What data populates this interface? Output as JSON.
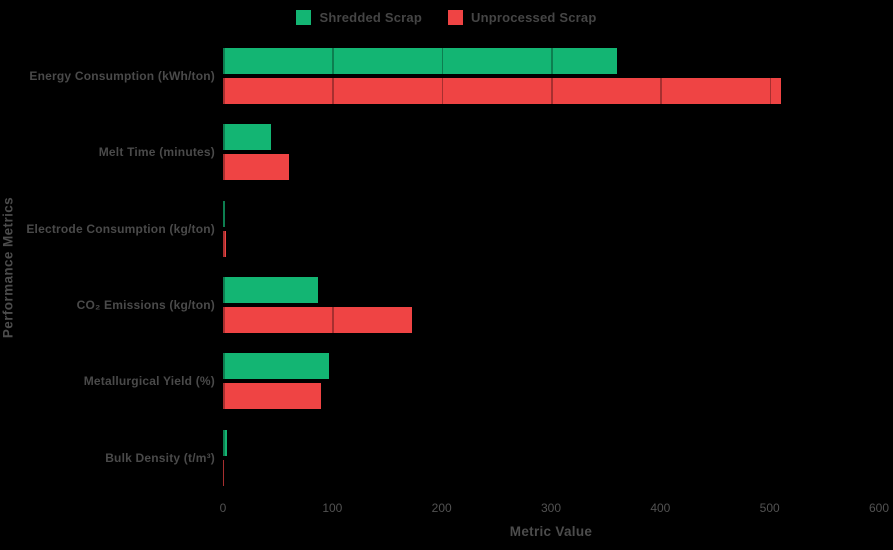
{
  "colors": {
    "background": "#000000",
    "shredded_green": "#13b573",
    "unprocessed_red": "#ef4444",
    "label_gray": "#4a4a4a",
    "tick_gray": "#525252"
  },
  "legend": [
    {
      "label": "Shredded Scrap",
      "color": "#13b573"
    },
    {
      "label": "Unprocessed Scrap",
      "color": "#ef4444"
    }
  ],
  "chart_data": {
    "type": "bar",
    "orientation": "horizontal",
    "title": "",
    "xlabel": "Metric Value",
    "ylabel": "Performance Metrics",
    "xlim": [
      0,
      600
    ],
    "xticks": [
      0,
      100,
      200,
      300,
      400,
      500,
      600
    ],
    "grid": true,
    "legend_position": "top-center",
    "categories": [
      "Energy Consumption (kWh/ton)",
      "Melt Time (minutes)",
      "Electrode Consumption (kg/ton)",
      "CO₂ Emissions (kg/ton)",
      "Metallurgical Yield (%)",
      "Bulk Density (t/m³)"
    ],
    "series": [
      {
        "name": "Shredded Scrap",
        "color": "#13b573",
        "values": [
          360,
          44,
          2,
          87,
          97,
          3.5
        ]
      },
      {
        "name": "Unprocessed Scrap",
        "color": "#ef4444",
        "values": [
          510,
          60,
          3,
          173,
          90,
          1
        ]
      }
    ]
  }
}
